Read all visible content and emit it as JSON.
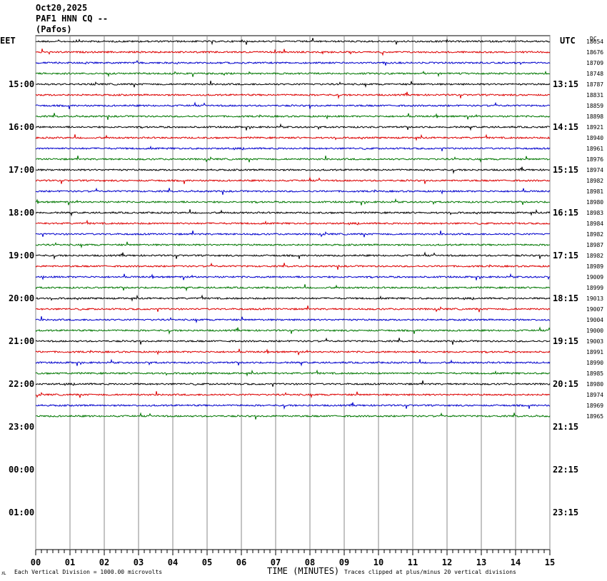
{
  "header": {
    "date": "Oct20,2025",
    "station": "PAF1 HNN CQ --",
    "location": "(Pafos)"
  },
  "left_tz": "EET",
  "right_tz": "UTC",
  "dc_label": "DC",
  "footer": {
    "scale_note": "Each Vertical Division = 1000.00 microvolts",
    "xlabel": "TIME (MINUTES)",
    "clip_note": "Traces clipped at plus/minus 20 vertical divisions",
    "corner_mark": "ᴊʟ"
  },
  "chart_data": {
    "type": "line",
    "title": "",
    "xlabel": "TIME (MINUTES)",
    "x_ticks": [
      "00",
      "01",
      "02",
      "03",
      "04",
      "05",
      "06",
      "07",
      "08",
      "09",
      "10",
      "11",
      "12",
      "13",
      "14",
      "15"
    ],
    "xlim": [
      0,
      15
    ],
    "left_hour_labels": [
      "15:00",
      "16:00",
      "17:00",
      "18:00",
      "19:00",
      "20:00",
      "21:00",
      "22:00",
      "23:00",
      "00:00",
      "01:00"
    ],
    "right_hour_labels": [
      "13:15",
      "14:15",
      "15:15",
      "16:15",
      "17:15",
      "18:15",
      "19:15",
      "20:15",
      "21:15",
      "22:15",
      "23:15"
    ],
    "trace_colors": [
      "#000000",
      "#dd0000",
      "#0000cc",
      "#007700"
    ],
    "dc_values": [
      "18654",
      "18676",
      "18709",
      "18748",
      "18787",
      "18831",
      "18859",
      "18898",
      "18921",
      "18940",
      "18961",
      "18976",
      "18974",
      "18982",
      "18981",
      "18980",
      "18983",
      "18984",
      "18982",
      "18987",
      "18982",
      "18989",
      "19009",
      "18999",
      "19013",
      "19007",
      "19004",
      "19000",
      "19003",
      "18991",
      "18990",
      "18985",
      "18980",
      "18974",
      "18969",
      "18965"
    ],
    "traces_per_hour": 4,
    "grid": "vertical-minute-lines"
  }
}
